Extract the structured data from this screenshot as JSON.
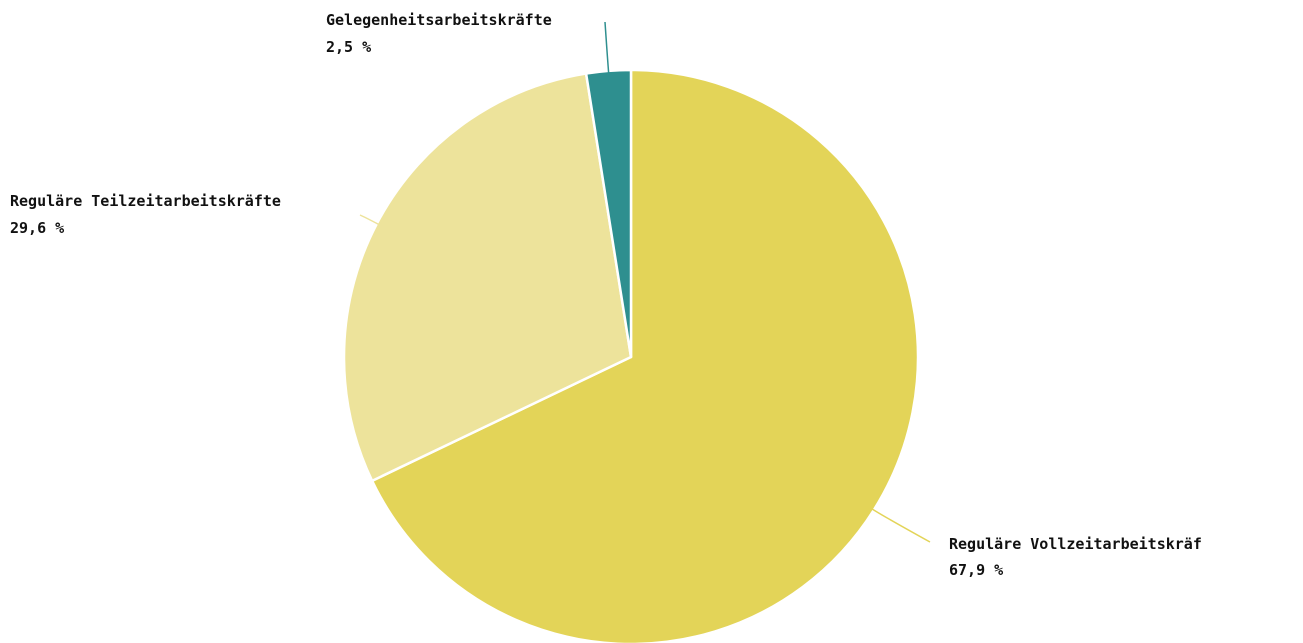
{
  "chart_data": {
    "type": "pie",
    "start_angle_deg": 0,
    "direction": "clockwise",
    "slices": [
      {
        "label": "Reguläre Vollzeitarbeitskräf",
        "value": 67.9,
        "value_text": "67,9 %",
        "color": "#e3d458"
      },
      {
        "label": "Reguläre Teilzeitarbeitskräfte",
        "value": 29.6,
        "value_text": "29,6 %",
        "color": "#ede39b"
      },
      {
        "label": "Gelegenheitsarbeitskräfte",
        "value": 2.5,
        "value_text": "2,5 %",
        "color": "#2e8f8f"
      }
    ],
    "legend": "none"
  }
}
